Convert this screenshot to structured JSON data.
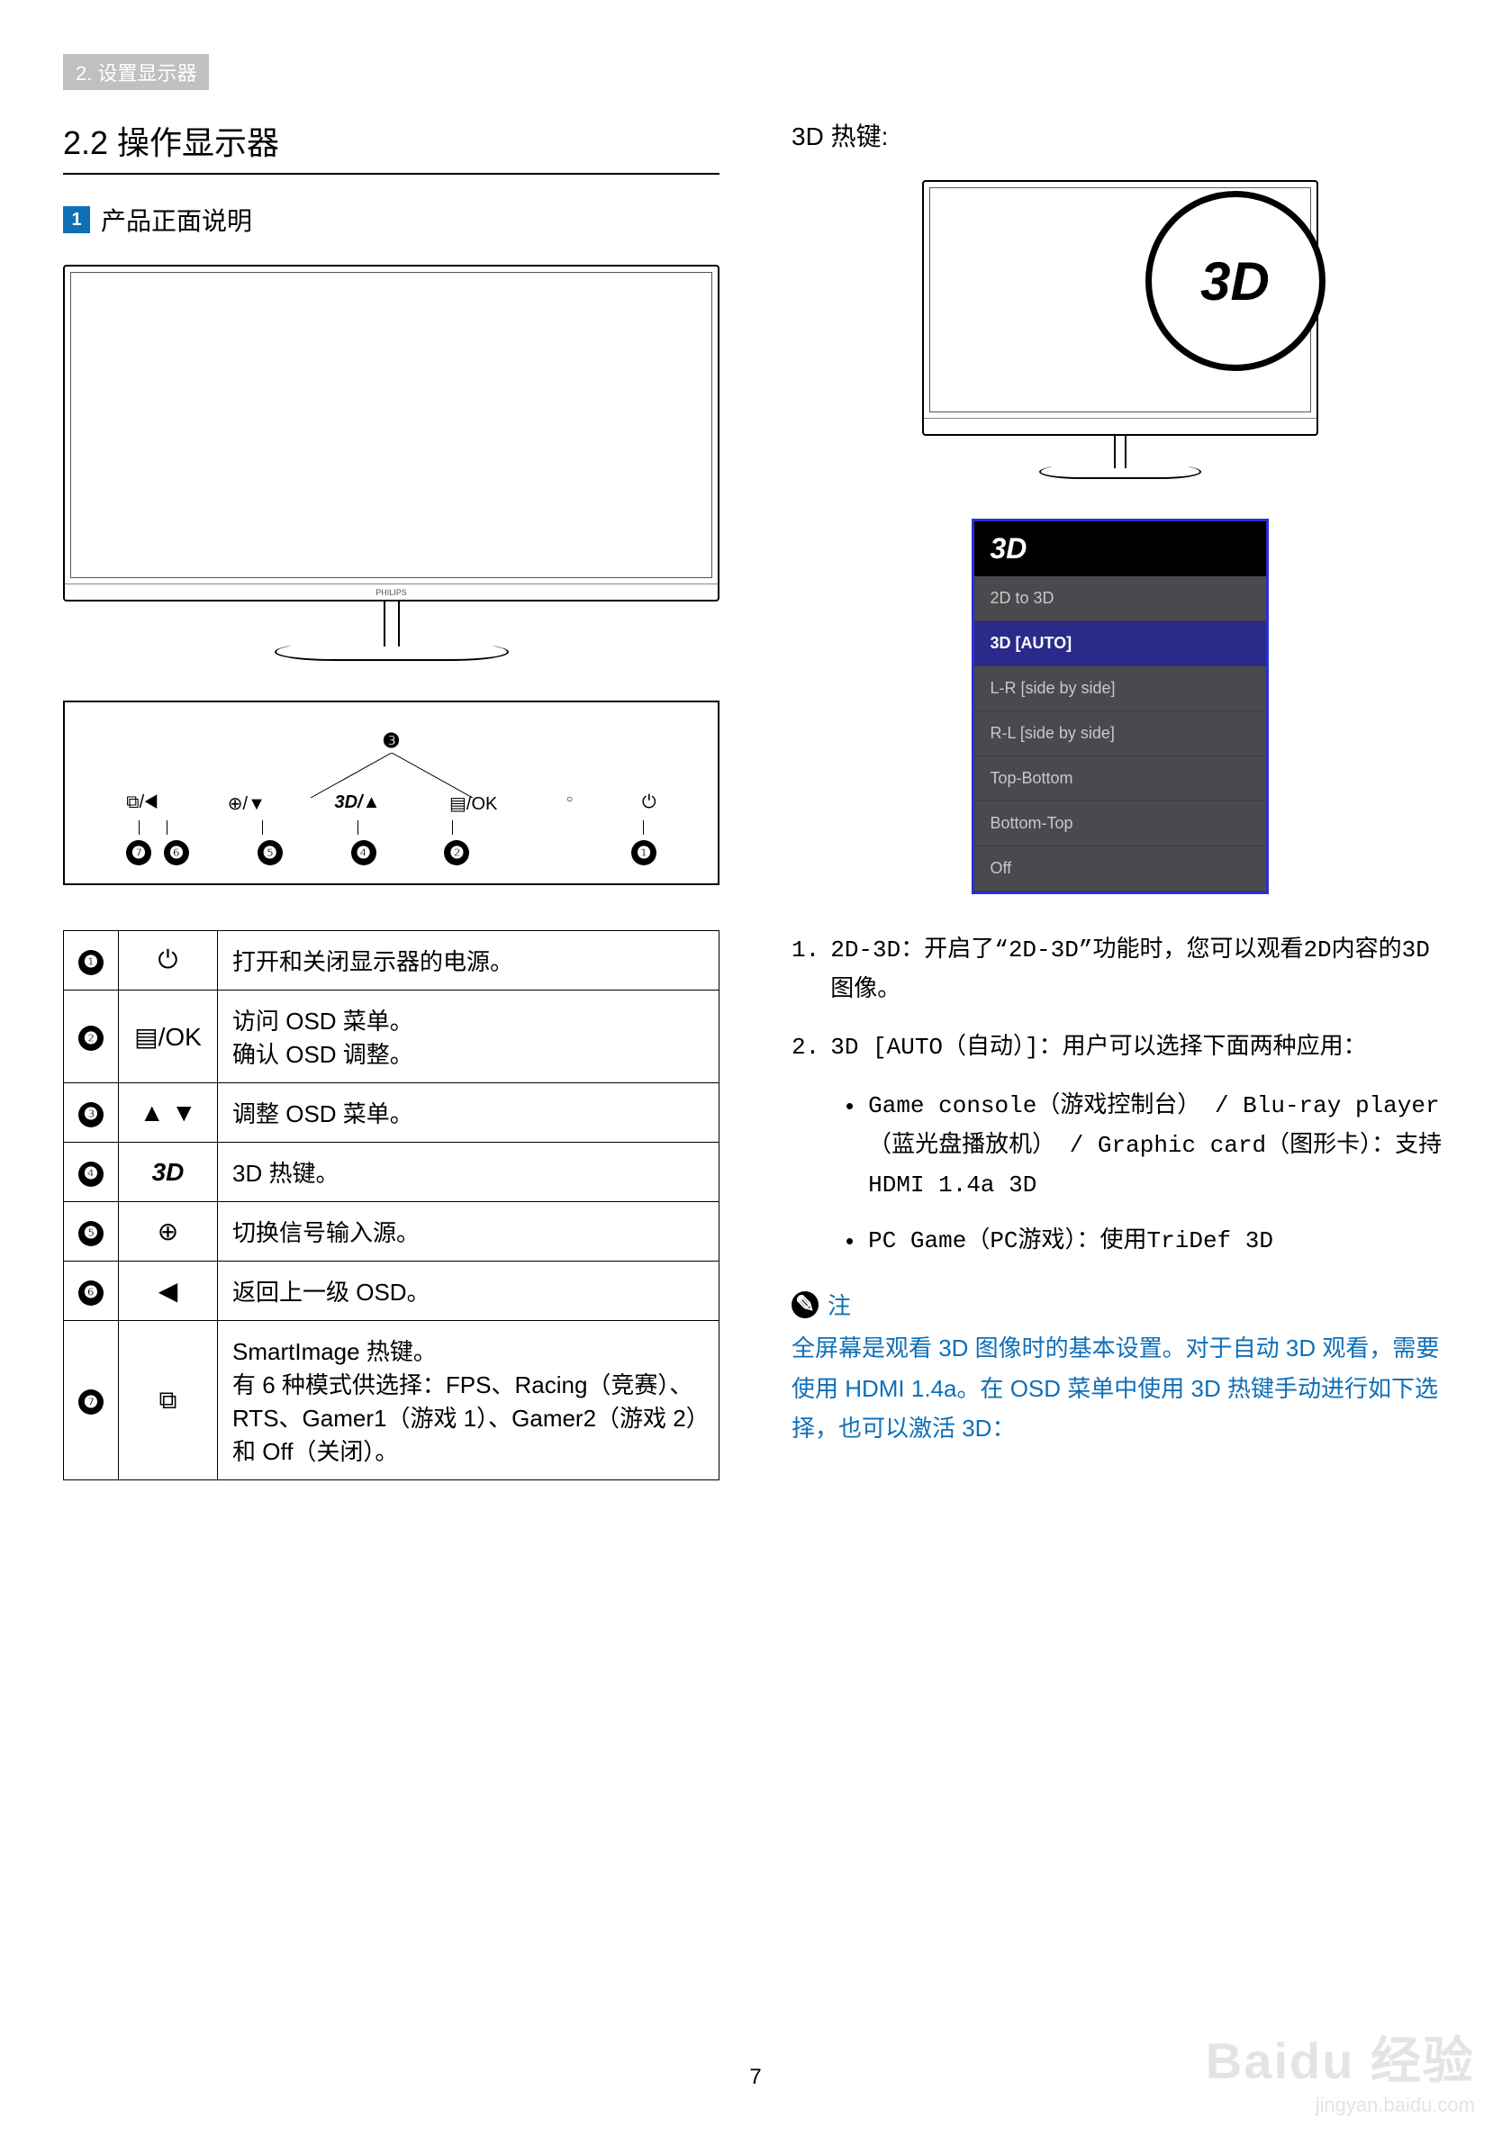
{
  "breadcrumb": "2. 设置显示器",
  "section_title": "2.2  操作显示器",
  "sub_heading_num": "1",
  "sub_heading_text": "产品正面说明",
  "bezel_brand": "PHILIPS",
  "btn_diagram": {
    "top_label": "❸",
    "row_labels": [
      "⧉/◀",
      "⊕/▼",
      "3D/▲",
      "▤/OK",
      "○",
      "⏻"
    ],
    "nums": [
      "❼",
      "❻",
      "❺",
      "❹",
      "❷",
      "❶"
    ]
  },
  "btn_table": [
    {
      "idx": "❶",
      "icon": "⏻",
      "desc": "打开和关闭显示器的电源。"
    },
    {
      "idx": "❷",
      "icon": "▤/OK",
      "desc": "访问 OSD 菜单。\n确认 OSD 调整。"
    },
    {
      "idx": "❸",
      "icon": "▲ ▼",
      "desc": "调整 OSD 菜单。"
    },
    {
      "idx": "❹",
      "icon": "3D",
      "desc": "3D 热键。"
    },
    {
      "idx": "❺",
      "icon": "⊕",
      "desc": "切换信号输入源。"
    },
    {
      "idx": "❻",
      "icon": "◀",
      "desc": "返回上一级 OSD。"
    },
    {
      "idx": "❼",
      "icon": "⧉",
      "desc": "SmartImage 热键。\n有 6 种模式供选择：FPS、Racing（竞赛）、RTS、Gamer1（游戏 1）、Gamer2（游戏 2）和 Off（关闭）。"
    }
  ],
  "right_title": "3D 热键:",
  "circle_3d": "3D",
  "osd_menu": {
    "header": "3D",
    "items": [
      {
        "label": "2D to 3D",
        "selected": false
      },
      {
        "label": "3D [AUTO]",
        "selected": true
      },
      {
        "label": "L-R [side by side]",
        "selected": false
      },
      {
        "label": "R-L [side by side]",
        "selected": false
      },
      {
        "label": "Top-Bottom",
        "selected": false
      },
      {
        "label": "Bottom-Top",
        "selected": false
      },
      {
        "label": "Off",
        "selected": false
      }
    ]
  },
  "numbered": [
    {
      "n": "1.",
      "text": "2D-3D：开启了“2D-3D”功能时，您可以观看2D内容的3D图像。"
    },
    {
      "n": "2.",
      "text": "3D [AUTO（自动）]：用户可以选择下面两种应用："
    }
  ],
  "bullets": [
    "Game console（游戏控制台） / Blu-ray player（蓝光盘播放机） / Graphic card（图形卡）：支持HDMI 1.4a 3D",
    "PC Game（PC游戏）：使用TriDef 3D"
  ],
  "note_label": "注",
  "note_body": "全屏幕是观看 3D 图像时的基本设置。对于自动 3D 观看，需要使用 HDMI 1.4a。在 OSD 菜单中使用 3D 热键手动进行如下选择，也可以激活 3D：",
  "page_number": "7",
  "watermark_main": "Baidu 经验",
  "watermark_sub": "jingyan.baidu.com",
  "colors": {
    "accent": "#0f6fb7",
    "osd_border": "#2a2fd4",
    "osd_bg": "#4a4a4e",
    "osd_selected": "#2a2a8a"
  }
}
